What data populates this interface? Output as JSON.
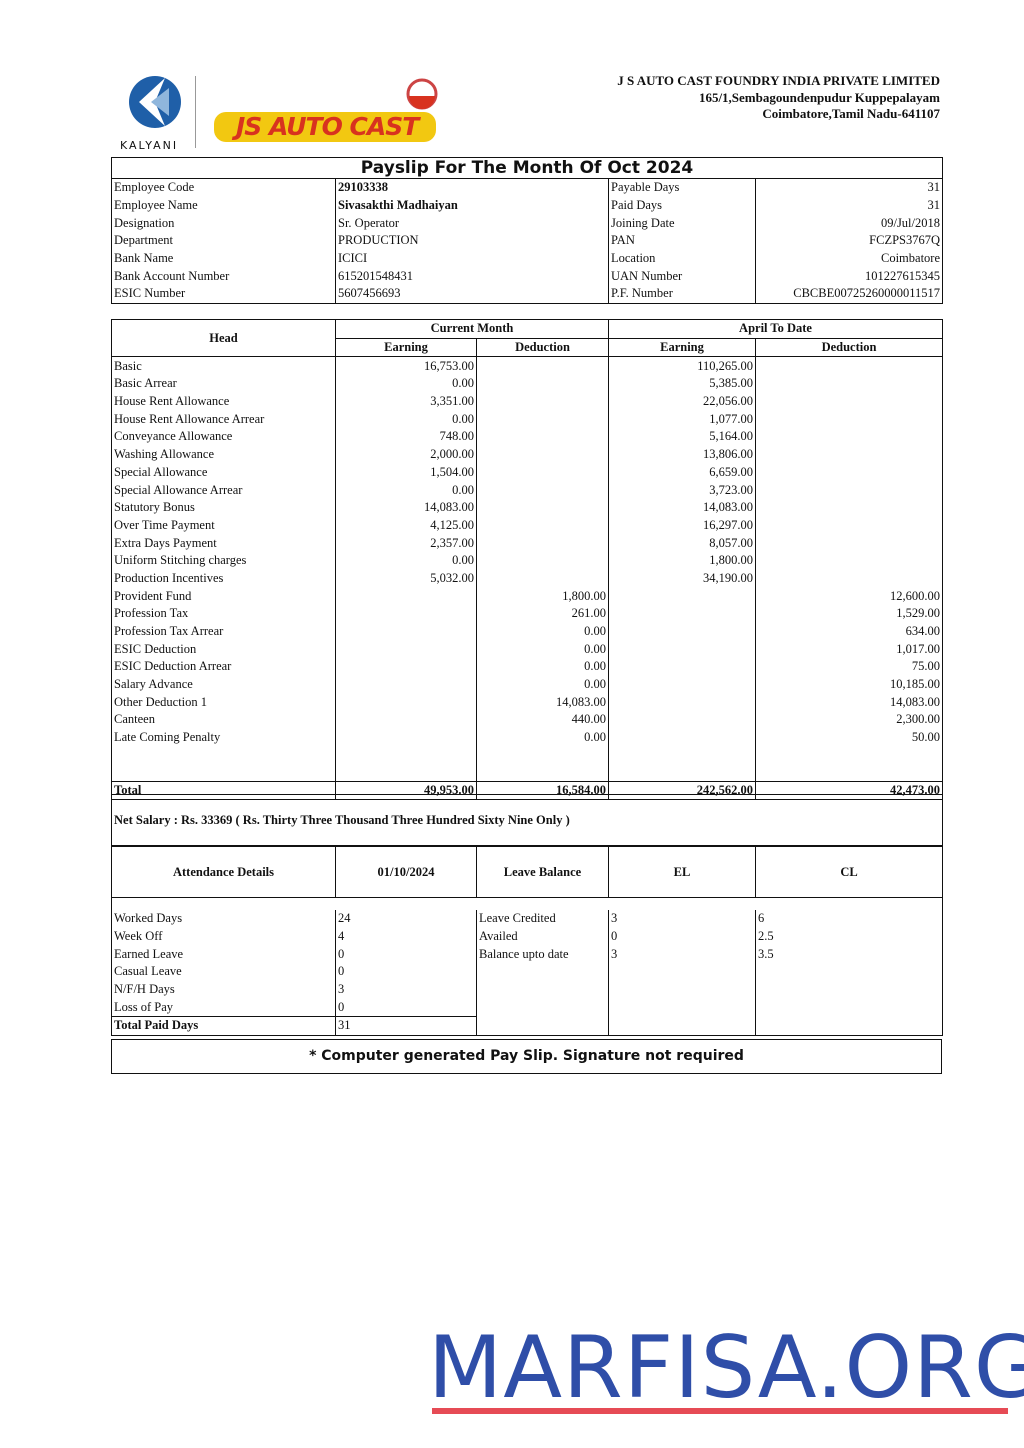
{
  "header": {
    "logo_kalyani": "KALYANI",
    "logo_jsautocast": "JS AUTO CAST",
    "company_name": "J S AUTO CAST FOUNDRY INDIA PRIVATE LIMITED",
    "address_line1": "165/1,Sembagoundenpudur Kuppepalayam",
    "address_line2": "Coimbatore,Tamil Nadu-641107"
  },
  "title": "Payslip For The Month Of Oct 2024",
  "employee": [
    {
      "l": "Employee Code",
      "v": "29103338",
      "l2": "Payable Days",
      "v2": "31"
    },
    {
      "l": "Employee Name",
      "v": "Sivasakthi Madhaiyan",
      "l2": "Paid Days",
      "v2": "31"
    },
    {
      "l": "Designation",
      "v": "Sr. Operator",
      "l2": "Joining Date",
      "v2": "09/Jul/2018"
    },
    {
      "l": "Department",
      "v": "PRODUCTION",
      "l2": "PAN",
      "v2": "FCZPS3767Q"
    },
    {
      "l": "Bank Name",
      "v": "ICICI",
      "l2": "Location",
      "v2": "Coimbatore"
    },
    {
      "l": "Bank Account Number",
      "v": "615201548431",
      "l2": "UAN Number",
      "v2": "101227615345"
    },
    {
      "l": "ESIC Number",
      "v": "5607456693",
      "l2": "P.F. Number",
      "v2": "CBCBE00725260000011517"
    }
  ],
  "earnings_table": {
    "head": "Head",
    "current_month": "Current Month",
    "april_to_date": "April To Date",
    "earning": "Earning",
    "deduction": "Deduction",
    "rows": [
      [
        "Basic",
        "16,753.00",
        "",
        "110,265.00",
        ""
      ],
      [
        "Basic Arrear",
        "0.00",
        "",
        "5,385.00",
        ""
      ],
      [
        "House Rent Allowance",
        "3,351.00",
        "",
        "22,056.00",
        ""
      ],
      [
        "House Rent Allowance Arrear",
        "0.00",
        "",
        "1,077.00",
        ""
      ],
      [
        "Conveyance Allowance",
        "748.00",
        "",
        "5,164.00",
        ""
      ],
      [
        "Washing Allowance",
        "2,000.00",
        "",
        "13,806.00",
        ""
      ],
      [
        "Special Allowance",
        "1,504.00",
        "",
        "6,659.00",
        ""
      ],
      [
        "Special Allowance Arrear",
        "0.00",
        "",
        "3,723.00",
        ""
      ],
      [
        "Statutory Bonus",
        "14,083.00",
        "",
        "14,083.00",
        ""
      ],
      [
        "Over Time Payment",
        "4,125.00",
        "",
        "16,297.00",
        ""
      ],
      [
        "Extra Days Payment",
        "2,357.00",
        "",
        "8,057.00",
        ""
      ],
      [
        "Uniform Stitching charges",
        "0.00",
        "",
        "1,800.00",
        ""
      ],
      [
        "Production Incentives",
        "5,032.00",
        "",
        "34,190.00",
        ""
      ],
      [
        "Provident Fund",
        "",
        "1,800.00",
        "",
        "12,600.00"
      ],
      [
        "Profession Tax",
        "",
        "261.00",
        "",
        "1,529.00"
      ],
      [
        "Profession Tax Arrear",
        "",
        "0.00",
        "",
        "634.00"
      ],
      [
        "ESIC Deduction",
        "",
        "0.00",
        "",
        "1,017.00"
      ],
      [
        "ESIC Deduction Arrear",
        "",
        "0.00",
        "",
        "75.00"
      ],
      [
        "Salary Advance",
        "",
        "0.00",
        "",
        "10,185.00"
      ],
      [
        "Other Deduction 1",
        "",
        "14,083.00",
        "",
        "14,083.00"
      ],
      [
        "Canteen",
        "",
        "440.00",
        "",
        "2,300.00"
      ],
      [
        "Late Coming Penalty",
        "",
        "0.00",
        "",
        "50.00"
      ]
    ],
    "total": [
      "Total",
      "49,953.00",
      "16,584.00",
      "242,562.00",
      "42,473.00"
    ]
  },
  "net_salary": "Net Salary : Rs.  33369 ( Rs. Thirty Three Thousand Three Hundred Sixty Nine Only )",
  "attendance": {
    "headers": [
      "Attendance Details",
      "01/10/2024",
      "Leave Balance",
      "EL",
      "CL"
    ],
    "rows": [
      [
        "Worked Days",
        "24",
        "Leave Credited",
        "3",
        "6"
      ],
      [
        "Week Off",
        "4",
        "Availed",
        "0",
        "2.5"
      ],
      [
        "Earned Leave",
        "0",
        "Balance upto date",
        "3",
        "3.5"
      ],
      [
        "Casual Leave",
        "0",
        "",
        "",
        ""
      ],
      [
        "N/F/H Days",
        "3",
        "",
        "",
        ""
      ],
      [
        "Loss of Pay",
        "0",
        "",
        "",
        ""
      ],
      [
        "Total Paid Days",
        "31",
        "",
        "",
        ""
      ]
    ]
  },
  "footer": "* Computer generated Pay Slip. Signature not required",
  "watermark": "MARFISA.ORG",
  "colors": {
    "watermark": "#2f4ea8",
    "underline": "#e64b55",
    "logo_red": "#d8321f",
    "logo_yellow": "#f2c811",
    "kalyani_blue": "#1f5fa8"
  }
}
